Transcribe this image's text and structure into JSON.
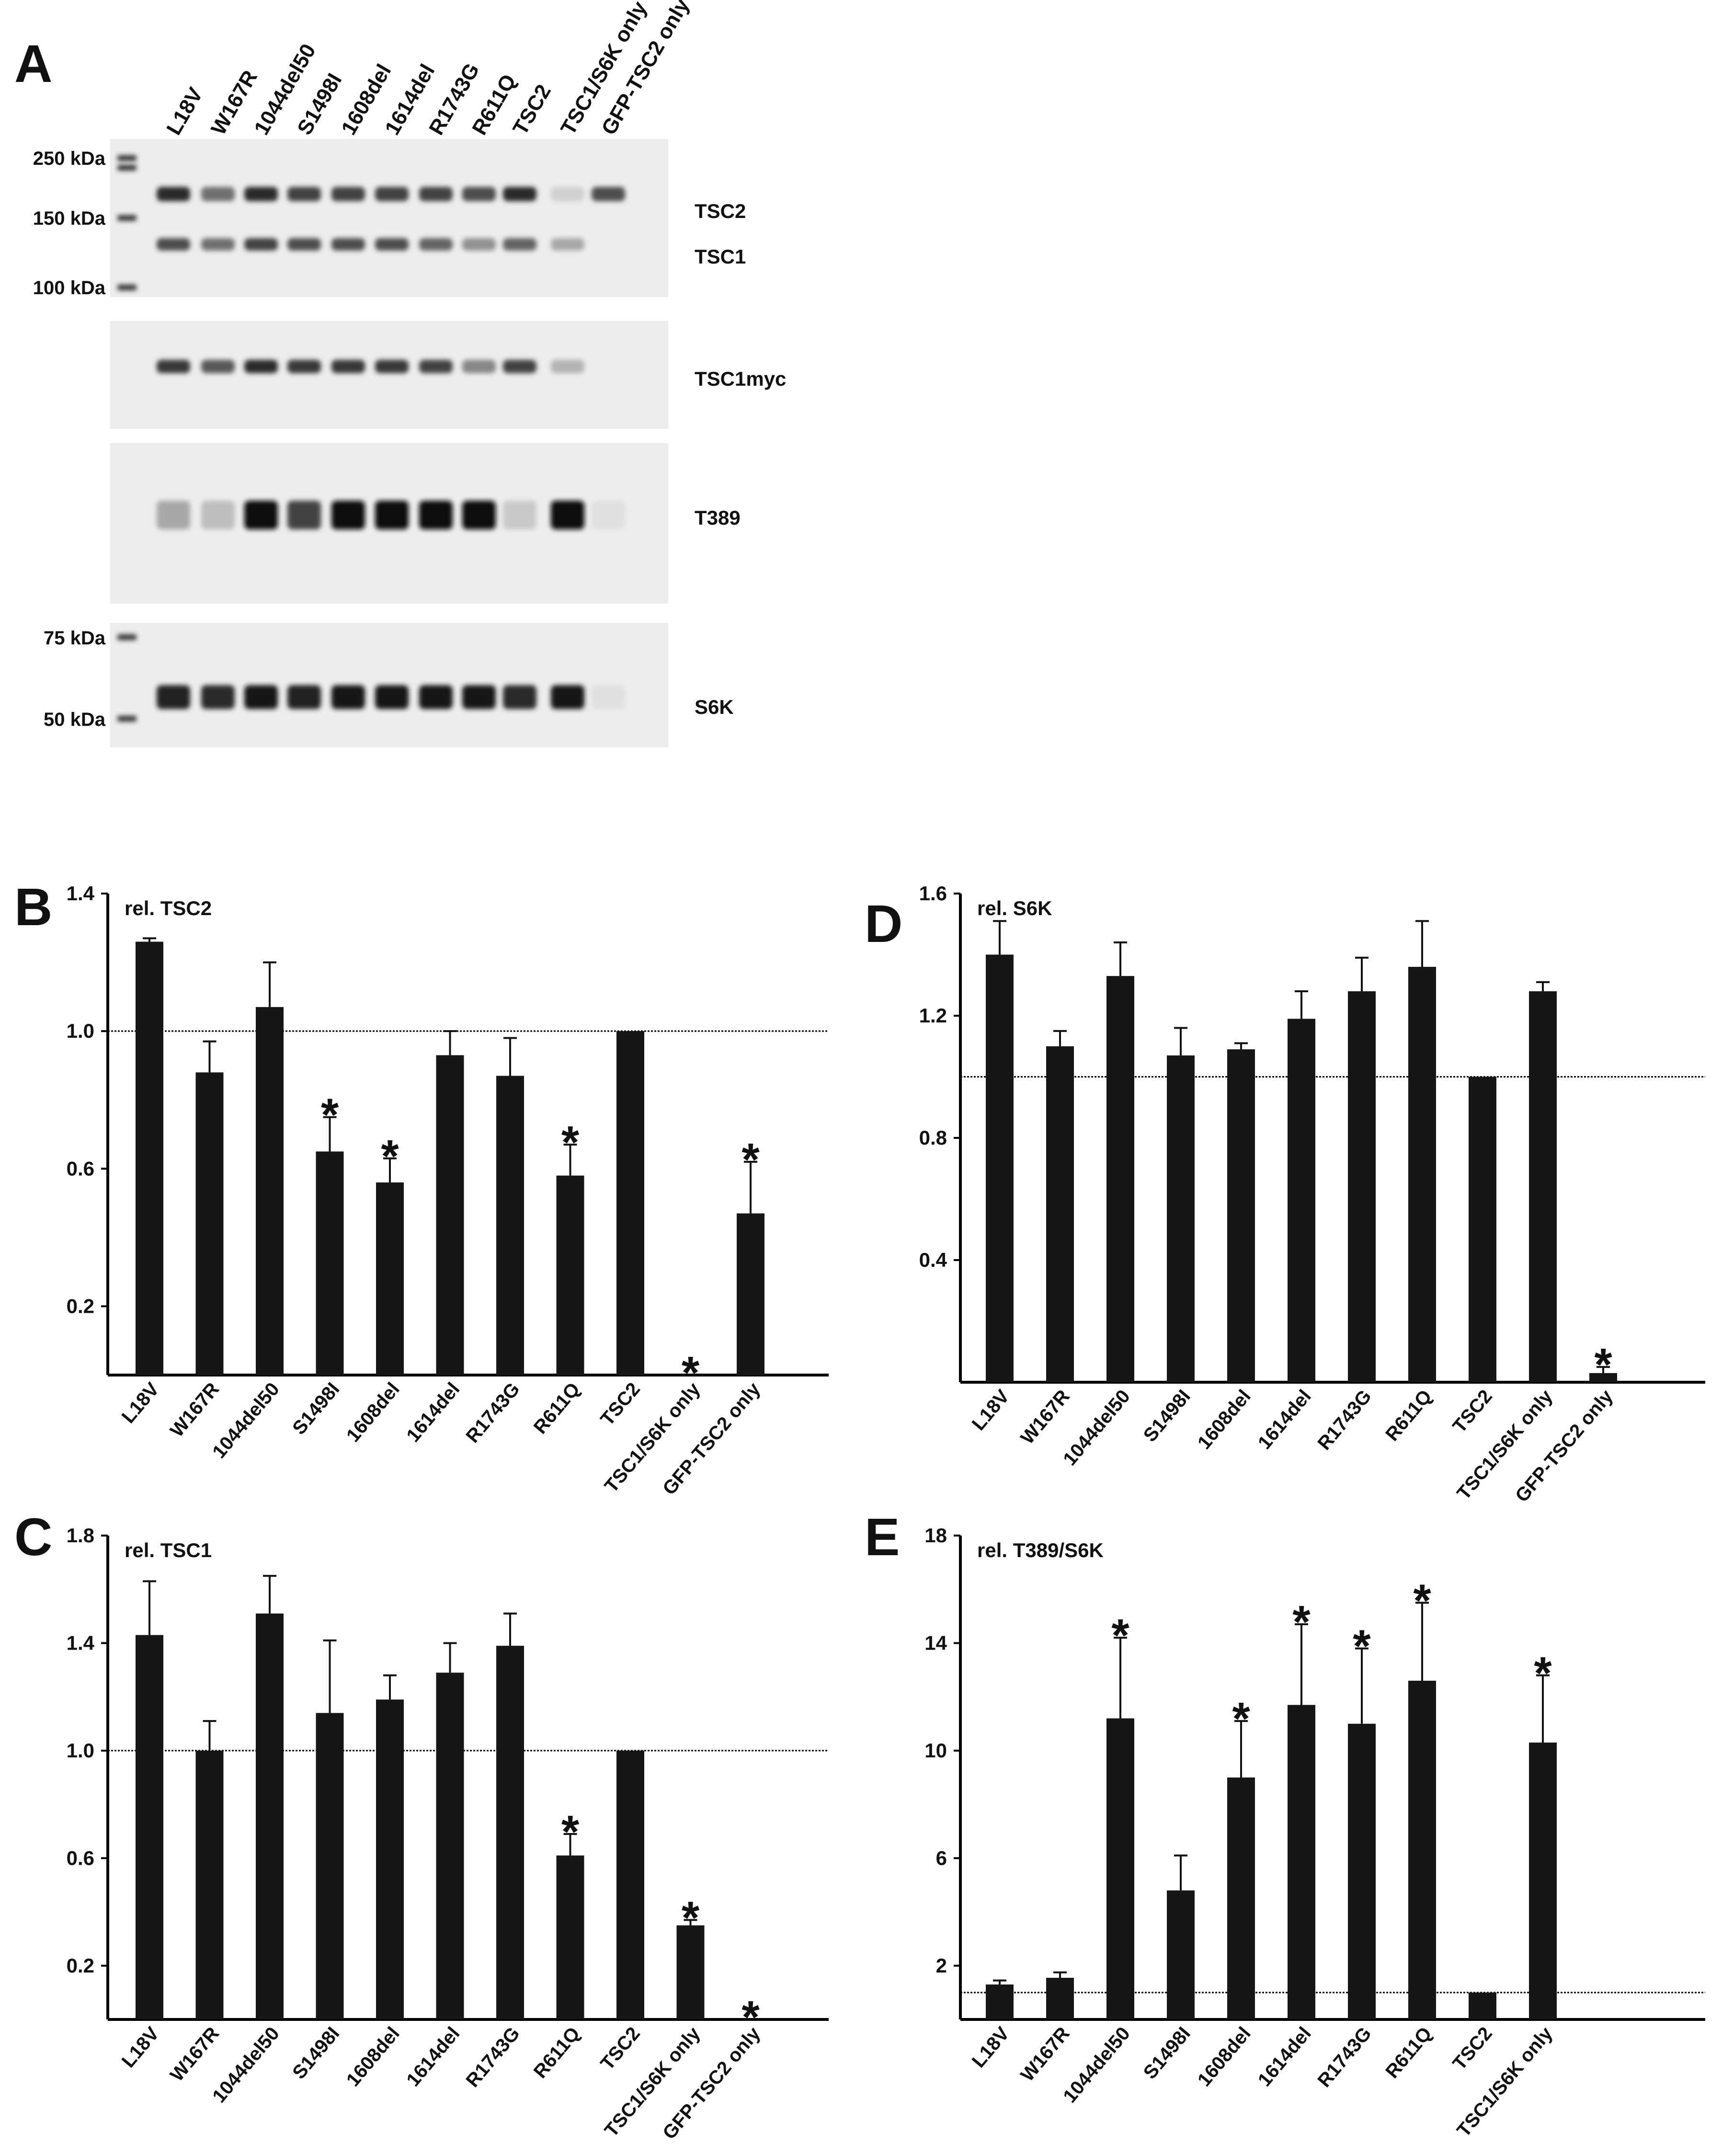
{
  "panel_A": {
    "letter": "A",
    "lanes": [
      "L18V",
      "W167R",
      "1044del50",
      "S1498I",
      "1608del",
      "1614del",
      "R1743G",
      "R611Q",
      "TSC2",
      "TSC1/S6K only",
      "GFP-TSC2 only"
    ],
    "blot1": {
      "markers": [
        "250 kDa",
        "150 kDa",
        "100 kDa"
      ],
      "bands": [
        "TSC2",
        "TSC1"
      ],
      "tsc2_intensity": [
        0.85,
        0.55,
        0.85,
        0.75,
        0.75,
        0.75,
        0.75,
        0.7,
        0.85,
        0.12,
        0.7
      ],
      "tsc1_intensity": [
        0.7,
        0.55,
        0.75,
        0.7,
        0.7,
        0.7,
        0.6,
        0.4,
        0.6,
        0.3,
        0.0
      ]
    },
    "blot2": {
      "bands": [
        "TSC1myc"
      ],
      "intensity": [
        0.8,
        0.65,
        0.85,
        0.8,
        0.8,
        0.8,
        0.75,
        0.45,
        0.75,
        0.25,
        0.0
      ]
    },
    "blot3": {
      "bands": [
        "T389"
      ],
      "intensity": [
        0.3,
        0.2,
        1.0,
        0.75,
        1.0,
        1.0,
        1.0,
        1.0,
        0.15,
        1.0,
        0.05
      ]
    },
    "blot4": {
      "markers": [
        "75 kDa",
        "50 kDa"
      ],
      "bands": [
        "S6K"
      ],
      "intensity": [
        0.9,
        0.85,
        0.95,
        0.9,
        0.95,
        0.95,
        0.95,
        0.95,
        0.85,
        0.95,
        0.05
      ]
    }
  },
  "chart_data": [
    {
      "panel": "B",
      "type": "bar",
      "title": "rel. TSC2",
      "categories": [
        "L18V",
        "W167R",
        "1044del50",
        "S1498I",
        "1608del",
        "1614del",
        "R1743G",
        "R611Q",
        "TSC2",
        "TSC1/S6K only",
        "GFP-TSC2 only"
      ],
      "values": [
        1.26,
        0.88,
        1.07,
        0.65,
        0.56,
        0.93,
        0.87,
        0.58,
        1.0,
        0.0,
        0.47
      ],
      "errors": [
        0.01,
        0.09,
        0.13,
        0.1,
        0.07,
        0.07,
        0.11,
        0.09,
        0.0,
        0.0,
        0.15
      ],
      "significant": [
        false,
        false,
        false,
        true,
        true,
        false,
        false,
        true,
        false,
        true,
        true
      ],
      "yticks": [
        "0.2",
        "0.6",
        "1.0",
        "1.4"
      ],
      "ylim": [
        0,
        1.4
      ],
      "reference_line": 1.0
    },
    {
      "panel": "C",
      "type": "bar",
      "title": "rel. TSC1",
      "categories": [
        "L18V",
        "W167R",
        "1044del50",
        "S1498I",
        "1608del",
        "1614del",
        "R1743G",
        "R611Q",
        "TSC2",
        "TSC1/S6K only",
        "GFP-TSC2 only"
      ],
      "values": [
        1.43,
        1.0,
        1.51,
        1.14,
        1.19,
        1.29,
        1.39,
        0.61,
        1.0,
        0.35,
        0.0
      ],
      "errors": [
        0.2,
        0.11,
        0.14,
        0.27,
        0.09,
        0.11,
        0.12,
        0.08,
        0.0,
        0.02,
        0.0
      ],
      "significant": [
        false,
        false,
        false,
        false,
        false,
        false,
        false,
        true,
        false,
        true,
        true
      ],
      "yticks": [
        "0.2",
        "0.6",
        "1.0",
        "1.4",
        "1.8"
      ],
      "ylim": [
        0,
        1.8
      ],
      "reference_line": 1.0
    },
    {
      "panel": "D",
      "type": "bar",
      "title": "rel. S6K",
      "categories": [
        "L18V",
        "W167R",
        "1044del50",
        "S1498I",
        "1608del",
        "1614del",
        "R1743G",
        "R611Q",
        "TSC2",
        "TSC1/S6K only",
        "GFP-TSC2 only"
      ],
      "values": [
        1.4,
        1.1,
        1.33,
        1.07,
        1.09,
        1.19,
        1.28,
        1.36,
        1.0,
        1.28,
        0.03
      ],
      "errors": [
        0.11,
        0.05,
        0.11,
        0.09,
        0.02,
        0.09,
        0.11,
        0.15,
        0.0,
        0.03,
        0.02
      ],
      "significant": [
        false,
        false,
        false,
        false,
        false,
        false,
        false,
        false,
        false,
        false,
        true
      ],
      "yticks": [
        "0.4",
        "0.8",
        "1.2",
        "1.6"
      ],
      "ylim": [
        0,
        1.6
      ],
      "reference_line": 1.0
    },
    {
      "panel": "E",
      "type": "bar",
      "title": "rel. T389/S6K",
      "categories": [
        "L18V",
        "W167R",
        "1044del50",
        "S1498I",
        "1608del",
        "1614del",
        "R1743G",
        "R611Q",
        "TSC2",
        "TSC1/S6K only"
      ],
      "values": [
        1.3,
        1.55,
        11.2,
        4.8,
        9.0,
        11.7,
        11.0,
        12.6,
        1.0,
        10.3
      ],
      "errors": [
        0.15,
        0.2,
        3.0,
        1.3,
        2.1,
        3.0,
        2.8,
        2.9,
        0.0,
        2.5
      ],
      "significant": [
        false,
        false,
        true,
        false,
        true,
        true,
        true,
        true,
        false,
        true
      ],
      "yticks": [
        "2",
        "6",
        "10",
        "14",
        "18"
      ],
      "ylim": [
        0,
        18
      ],
      "reference_line": 1.0
    }
  ]
}
